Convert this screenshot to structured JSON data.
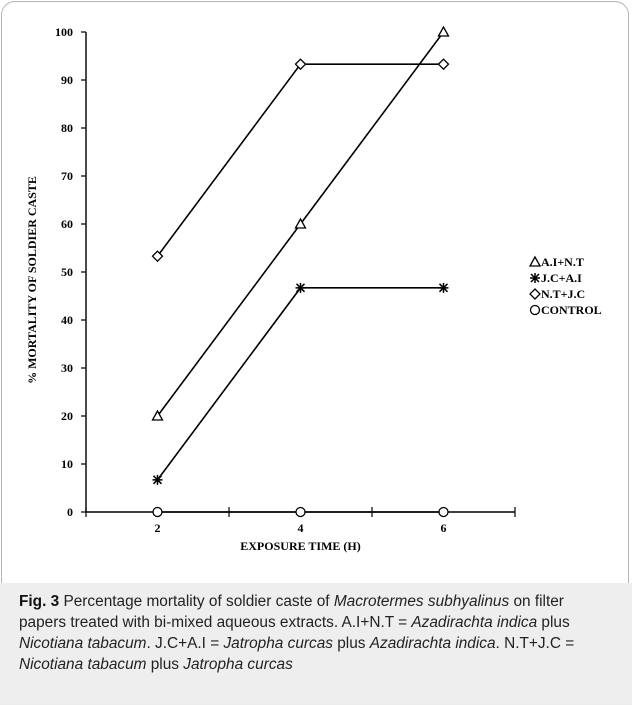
{
  "chart_data": {
    "type": "line",
    "x": [
      2,
      4,
      6
    ],
    "series": [
      {
        "name": "A.I+N.T",
        "marker": "triangle",
        "values": [
          20,
          60,
          100
        ]
      },
      {
        "name": "J.C+A.I",
        "marker": "asterisk",
        "values": [
          6.7,
          46.7,
          46.7
        ]
      },
      {
        "name": "N.T+J.C",
        "marker": "diamond",
        "values": [
          53.3,
          93.3,
          93.3
        ]
      },
      {
        "name": "CONTROL",
        "marker": "circle",
        "values": [
          0,
          0,
          0
        ]
      }
    ],
    "xlabel": "EXPOSURE TIME (H)",
    "ylabel": "% MORTALITY OF SOLDIER CASTE",
    "xlim": [
      1,
      7
    ],
    "ylim": [
      0,
      100
    ],
    "yticks": [
      0,
      10,
      20,
      30,
      40,
      50,
      60,
      70,
      80,
      90,
      100
    ],
    "xticks": [
      2,
      4,
      6
    ],
    "grid": false,
    "legend_position": "right"
  },
  "caption": {
    "figure_label": "Fig. 3",
    "segments": [
      {
        "text": "Percentage mortality of soldier caste of ",
        "italic": false
      },
      {
        "text": "Macrotermes subhyalinus",
        "italic": true
      },
      {
        "text": " on filter papers treated with bi-mixed aqueous extracts. A.I+N.T = ",
        "italic": false
      },
      {
        "text": "Azadirachta indica",
        "italic": true
      },
      {
        "text": " plus ",
        "italic": false
      },
      {
        "text": "Nicotiana tabacum",
        "italic": true
      },
      {
        "text": ". J.C+A.I = ",
        "italic": false
      },
      {
        "text": "Jatropha curcas",
        "italic": true
      },
      {
        "text": " plus ",
        "italic": false
      },
      {
        "text": "Azadirachta indica",
        "italic": true
      },
      {
        "text": ". N.T+J.C = ",
        "italic": false
      },
      {
        "text": "Nicotiana tabacum",
        "italic": true
      },
      {
        "text": " plus ",
        "italic": false
      },
      {
        "text": "Jatropha curcas",
        "italic": true
      }
    ]
  },
  "colors": {
    "ink": "#000000",
    "caption_bg": "#eeeeee",
    "caption_text": "#222222",
    "frame": "#b4b4b4"
  }
}
